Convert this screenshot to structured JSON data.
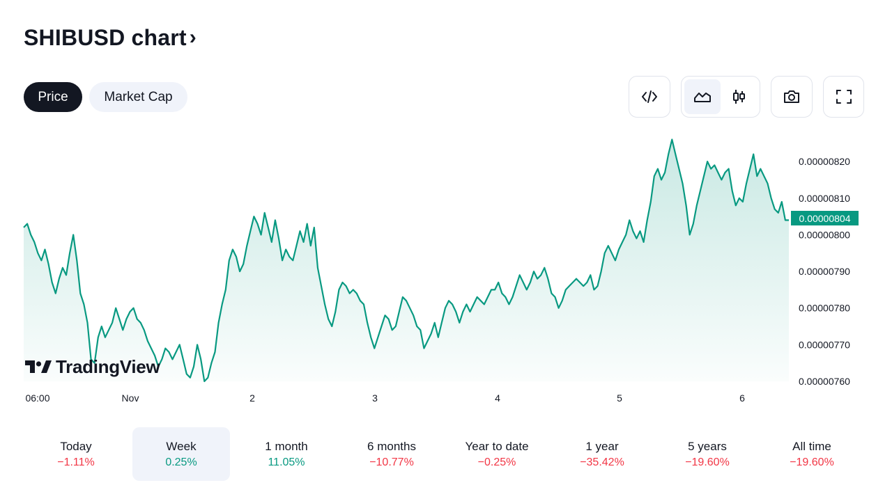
{
  "header": {
    "title": "SHIBUSD chart",
    "chevron": "›"
  },
  "tabs": [
    {
      "label": "Price",
      "active": true
    },
    {
      "label": "Market Cap",
      "active": false
    }
  ],
  "toolbar": {
    "embed_icon": "code-icon",
    "line_icon": "area-chart-icon",
    "candle_icon": "candlestick-icon",
    "snapshot_icon": "camera-icon",
    "fullscreen_icon": "fullscreen-icon",
    "selected_chart_style": "area"
  },
  "logo": {
    "text": "TradingView"
  },
  "colors": {
    "accent": "#089981",
    "negative": "#f23645",
    "dark": "#131722",
    "fill": "#d4efe9"
  },
  "chart_data": {
    "type": "area",
    "ylim": [
      7.6e-06,
      8.28e-06
    ],
    "y_ticks": [
      "0.00000820",
      "0.00000810",
      "0.00000800",
      "0.00000790",
      "0.00000780",
      "0.00000770",
      "0.00000760"
    ],
    "y_tick_values": [
      8.2e-06,
      8.1e-06,
      8e-06,
      7.9e-06,
      7.8e-06,
      7.7e-06,
      7.6e-06
    ],
    "x_ticks": [
      "06:00",
      "Nov",
      "2",
      "3",
      "4",
      "5",
      "6"
    ],
    "last_price": 8.04e-06,
    "last_price_label": "0.00000804",
    "series": [
      {
        "values": [
          8.02e-06,
          8.03e-06,
          8e-06,
          7.98e-06,
          7.95e-06,
          7.93e-06,
          7.96e-06,
          7.92e-06,
          7.87e-06,
          7.84e-06,
          7.88e-06,
          7.91e-06,
          7.89e-06,
          7.95e-06,
          8e-06,
          7.93e-06,
          7.84e-06,
          7.81e-06,
          7.76e-06,
          7.66e-06,
          7.65e-06,
          7.72e-06,
          7.75e-06,
          7.72e-06,
          7.74e-06,
          7.76e-06,
          7.8e-06,
          7.77e-06,
          7.74e-06,
          7.77e-06,
          7.79e-06,
          7.8e-06,
          7.77e-06,
          7.76e-06,
          7.74e-06,
          7.71e-06,
          7.69e-06,
          7.67e-06,
          7.64e-06,
          7.66e-06,
          7.69e-06,
          7.68e-06,
          7.66e-06,
          7.68e-06,
          7.7e-06,
          7.66e-06,
          7.62e-06,
          7.61e-06,
          7.64e-06,
          7.7e-06,
          7.66e-06,
          7.6e-06,
          7.61e-06,
          7.65e-06,
          7.68e-06,
          7.76e-06,
          7.81e-06,
          7.85e-06,
          7.93e-06,
          7.96e-06,
          7.94e-06,
          7.9e-06,
          7.92e-06,
          7.97e-06,
          8.01e-06,
          8.05e-06,
          8.03e-06,
          8e-06,
          8.06e-06,
          8.02e-06,
          7.98e-06,
          8.04e-06,
          7.99e-06,
          7.93e-06,
          7.96e-06,
          7.94e-06,
          7.93e-06,
          7.97e-06,
          8.01e-06,
          7.98e-06,
          8.03e-06,
          7.97e-06,
          8.02e-06,
          7.91e-06,
          7.86e-06,
          7.81e-06,
          7.77e-06,
          7.75e-06,
          7.79e-06,
          7.85e-06,
          7.87e-06,
          7.86e-06,
          7.84e-06,
          7.85e-06,
          7.84e-06,
          7.82e-06,
          7.81e-06,
          7.76e-06,
          7.72e-06,
          7.69e-06,
          7.72e-06,
          7.75e-06,
          7.78e-06,
          7.77e-06,
          7.74e-06,
          7.75e-06,
          7.79e-06,
          7.83e-06,
          7.82e-06,
          7.8e-06,
          7.78e-06,
          7.75e-06,
          7.74e-06,
          7.69e-06,
          7.71e-06,
          7.73e-06,
          7.76e-06,
          7.72e-06,
          7.76e-06,
          7.8e-06,
          7.82e-06,
          7.81e-06,
          7.79e-06,
          7.76e-06,
          7.79e-06,
          7.81e-06,
          7.79e-06,
          7.81e-06,
          7.83e-06,
          7.82e-06,
          7.81e-06,
          7.83e-06,
          7.85e-06,
          7.85e-06,
          7.87e-06,
          7.84e-06,
          7.83e-06,
          7.81e-06,
          7.83e-06,
          7.86e-06,
          7.89e-06,
          7.87e-06,
          7.85e-06,
          7.87e-06,
          7.9e-06,
          7.88e-06,
          7.89e-06,
          7.91e-06,
          7.88e-06,
          7.84e-06,
          7.83e-06,
          7.8e-06,
          7.82e-06,
          7.85e-06,
          7.86e-06,
          7.87e-06,
          7.88e-06,
          7.87e-06,
          7.86e-06,
          7.87e-06,
          7.89e-06,
          7.85e-06,
          7.86e-06,
          7.9e-06,
          7.95e-06,
          7.97e-06,
          7.95e-06,
          7.93e-06,
          7.96e-06,
          7.98e-06,
          8e-06,
          8.04e-06,
          8.01e-06,
          7.99e-06,
          8.01e-06,
          7.98e-06,
          8.04e-06,
          8.09e-06,
          8.16e-06,
          8.18e-06,
          8.15e-06,
          8.17e-06,
          8.22e-06,
          8.26e-06,
          8.22e-06,
          8.18e-06,
          8.14e-06,
          8.08e-06,
          8e-06,
          8.03e-06,
          8.08e-06,
          8.12e-06,
          8.16e-06,
          8.2e-06,
          8.18e-06,
          8.19e-06,
          8.17e-06,
          8.15e-06,
          8.17e-06,
          8.18e-06,
          8.12e-06,
          8.08e-06,
          8.1e-06,
          8.09e-06,
          8.14e-06,
          8.18e-06,
          8.22e-06,
          8.16e-06,
          8.18e-06,
          8.16e-06,
          8.14e-06,
          8.1e-06,
          8.07e-06,
          8.06e-06,
          8.09e-06,
          8.04e-06,
          8.04e-06
        ]
      }
    ]
  },
  "periods": [
    {
      "label": "Today",
      "value": "−1.11%",
      "trend": "neg",
      "selected": false
    },
    {
      "label": "Week",
      "value": "0.25%",
      "trend": "pos",
      "selected": true
    },
    {
      "label": "1 month",
      "value": "11.05%",
      "trend": "pos",
      "selected": false
    },
    {
      "label": "6 months",
      "value": "−10.77%",
      "trend": "neg",
      "selected": false
    },
    {
      "label": "Year to date",
      "value": "−0.25%",
      "trend": "neg",
      "selected": false
    },
    {
      "label": "1 year",
      "value": "−35.42%",
      "trend": "neg",
      "selected": false
    },
    {
      "label": "5 years",
      "value": "−19.60%",
      "trend": "neg",
      "selected": false
    },
    {
      "label": "All time",
      "value": "−19.60%",
      "trend": "neg",
      "selected": false
    }
  ]
}
